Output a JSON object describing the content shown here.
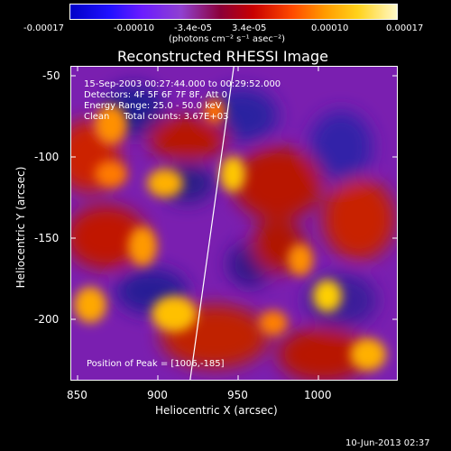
{
  "colorbar": {
    "tick_labels": [
      "-0.00017",
      "-0.00010",
      "-3.4e-05",
      "3.4e-05",
      "0.00010",
      "0.00017"
    ],
    "unit_label": "(photons cm⁻² s⁻¹ asec⁻²)"
  },
  "title": "Reconstructed RHESSI Image",
  "info": {
    "time_range": "15-Sep-2003 00:27:44.000 to 00:29:52.000",
    "detectors": "Detectors: 4F 5F 6F 7F 8F, Att 0",
    "energy": "Energy Range: 25.0 - 50.0 keV",
    "algorithm": "Clean     Total counts: 3.67E+03"
  },
  "peak_label": "Position of Peak = [1006,-185]",
  "x_axis": {
    "label": "Heliocentric X (arcsec)",
    "ticks": [
      "850",
      "900",
      "950",
      "1000"
    ]
  },
  "y_axis": {
    "label": "Heliocentric Y (arcsec)",
    "ticks": [
      "-50",
      "-100",
      "-150",
      "-200"
    ]
  },
  "footer_date": "10-Jun-2013 02:37"
}
